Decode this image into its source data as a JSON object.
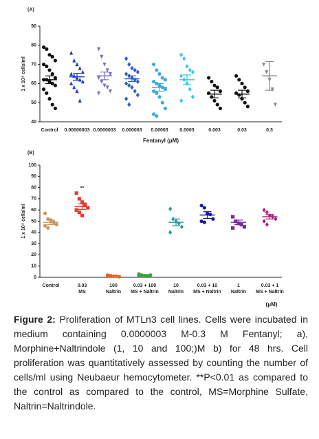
{
  "chart_data": [
    {
      "type": "dot",
      "panel": "(A)",
      "y_label": "1 x 10⁴ cells/ml",
      "x_label": "Fentanyl (μM)",
      "ylim": [
        40,
        90
      ],
      "yticks": [
        40,
        50,
        60,
        70,
        80,
        90
      ],
      "categories": [
        "Control",
        "0.00000003",
        "0.0000003",
        "0.000003",
        "0.00003",
        "0.0003",
        "0.003",
        "0.03",
        "0.3"
      ],
      "colors": [
        "#111111",
        "#1f3fbf",
        "#7a6fc8",
        "#2e5fc0",
        "#3fa9e0",
        "#3cc8e8",
        "#111111",
        "#111111",
        "#888888"
      ],
      "markers": [
        "circle",
        "triangle",
        "itriangle",
        "diamond",
        "circle",
        "diamond",
        "circle",
        "circle",
        "itriangle"
      ],
      "points": [
        [
          79,
          78,
          75,
          74,
          72,
          70,
          69,
          67,
          65,
          63,
          62,
          62,
          61,
          60,
          59,
          57,
          55,
          52,
          49,
          47
        ],
        [
          76,
          72,
          70,
          68,
          66,
          65,
          64,
          63,
          62,
          61,
          60,
          58,
          56,
          51
        ],
        [
          78,
          74,
          70,
          67,
          65,
          63,
          61,
          59,
          58,
          56,
          55
        ],
        [
          73,
          70,
          68,
          67,
          66,
          65,
          64,
          63,
          62,
          61,
          60,
          59,
          58,
          56,
          54,
          52,
          49
        ],
        [
          70,
          67,
          65,
          63,
          62,
          61,
          60,
          59,
          58,
          57,
          56,
          55,
          53,
          50,
          47,
          44,
          43
        ],
        [
          75,
          73,
          69,
          67,
          66,
          64,
          62,
          60,
          57,
          53,
          51
        ],
        [
          63,
          61,
          59,
          58,
          56,
          55,
          53,
          51,
          49,
          47
        ],
        [
          64,
          62,
          60,
          58,
          56,
          55,
          54,
          52,
          50,
          48
        ],
        [
          70,
          66,
          62,
          57,
          49
        ]
      ],
      "means": [
        62,
        63.5,
        64,
        62.5,
        58,
        62,
        54.5,
        54.5,
        64
      ],
      "errors": [
        2,
        1.8,
        2,
        1.5,
        2,
        2.5,
        2,
        2,
        7.5
      ]
    },
    {
      "type": "dot",
      "panel": "(B)",
      "y_label": "1 x 10⁴ cells/ml",
      "x_label": "(μM)",
      "annotation": "**",
      "annotation_category": 1,
      "ylim": [
        0,
        100
      ],
      "yticks": [
        0,
        10,
        20,
        30,
        40,
        50,
        60,
        70,
        80,
        90,
        100
      ],
      "categories": [
        [
          "Control"
        ],
        [
          "0.03",
          "MS"
        ],
        [
          "100",
          "Naltrin"
        ],
        [
          "0.03 + 100",
          "MS + Naltrin"
        ],
        [
          "10",
          "Naltrin"
        ],
        [
          "0.03 + 10",
          "MS + Naltrin"
        ],
        [
          "1",
          "Naltrin"
        ],
        [
          "0.03 + 1",
          "MS + Naltrin"
        ]
      ],
      "colors": [
        "#c8965a",
        "#e53a2a",
        "#e8622a",
        "#3aa63a",
        "#2a9a9a",
        "#1a1a9a",
        "#7a2aa0",
        "#b0207a"
      ],
      "markers": [
        "circle",
        "square",
        "circle",
        "circle",
        "diamond",
        "circle",
        "square",
        "diamond"
      ],
      "points": [
        [
          57,
          52,
          51,
          49,
          47,
          46,
          44
        ],
        [
          75,
          70,
          67,
          65,
          62,
          60,
          58,
          55
        ],
        [
          2,
          1.5,
          1,
          1,
          0.5,
          1,
          1.5
        ],
        [
          3,
          2,
          1.5,
          1,
          2,
          1.5
        ],
        [
          61,
          52,
          50,
          48,
          45,
          40
        ],
        [
          64,
          62,
          57,
          56,
          52,
          50,
          49
        ],
        [
          54,
          50,
          48,
          47,
          45,
          44
        ],
        [
          60,
          58,
          55,
          54,
          52,
          50,
          47
        ]
      ],
      "means": [
        49,
        63,
        1,
        2,
        49,
        55.5,
        49,
        54
      ],
      "errors": [
        2,
        2.5,
        0.3,
        0.5,
        3,
        3,
        2,
        2
      ]
    }
  ],
  "caption": {
    "label": "Figure 2:",
    "text": "Proliferation of MTLn3 cell lines. Cells were incubated in medium containing 0.0000003 M-0.3 M Fentanyl; a), Morphine+Naltrindole (1, 10 and 100;)M b) for 48 hrs. Cell proliferation was quantitatively assessed by counting the number of cells/ml using Neubaeur hemocytometer. **P<0.01 as compared to the control as compared to the control, MS=Morphine Sulfate, Naltrin=Naltrindole."
  }
}
